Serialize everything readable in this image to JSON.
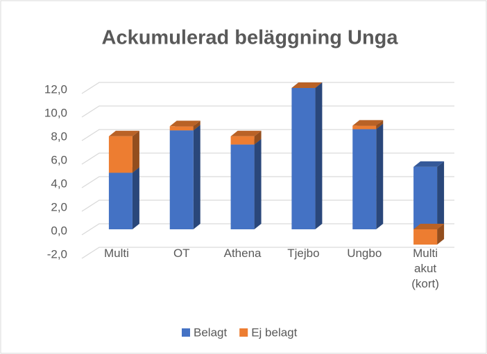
{
  "chart_data": {
    "type": "bar",
    "stacked": true,
    "title": "Ackumulerad beläggning Unga",
    "categories": [
      "Multi",
      "OT",
      "Athena",
      "Tjejbo",
      "Ungbo",
      "Multi akut (kort)"
    ],
    "series": [
      {
        "name": "Belagt",
        "color": "#4472c4",
        "values": [
          4.8,
          8.4,
          7.2,
          12.0,
          8.5,
          5.3
        ]
      },
      {
        "name": "Ej belagt",
        "color": "#ed7d31",
        "values": [
          3.1,
          0.35,
          0.7,
          0,
          0.3,
          -1.3
        ]
      }
    ],
    "ylim": [
      -2,
      12
    ],
    "yticks": [
      {
        "value": -2,
        "label": "-2,0"
      },
      {
        "value": 0,
        "label": "0,0"
      },
      {
        "value": 2,
        "label": "2,0"
      },
      {
        "value": 4,
        "label": "4,0"
      },
      {
        "value": 6,
        "label": "6,0"
      },
      {
        "value": 8,
        "label": "8,0"
      },
      {
        "value": 10,
        "label": "10,0"
      },
      {
        "value": 12,
        "label": "12,0"
      }
    ],
    "grid": true,
    "legend": "bottom"
  }
}
